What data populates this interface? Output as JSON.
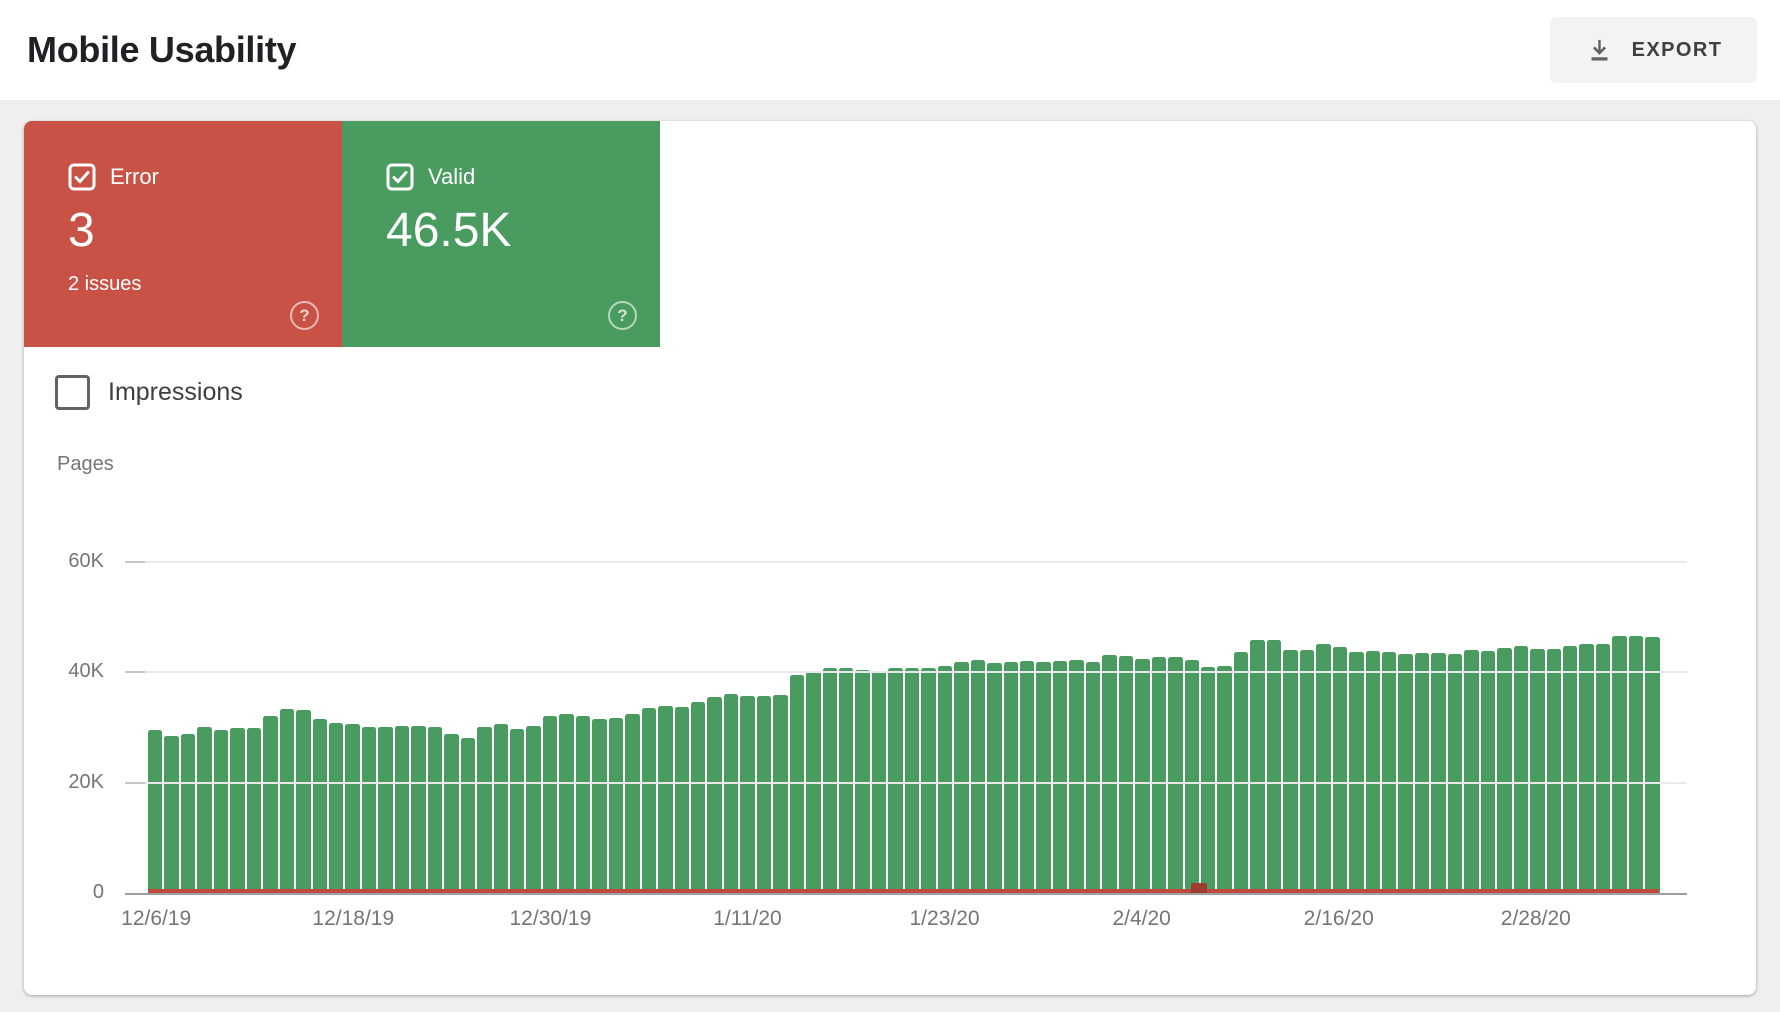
{
  "header": {
    "title": "Mobile Usability",
    "export_label": "EXPORT"
  },
  "icons": {
    "help_glyph": "?"
  },
  "colors": {
    "error_red": "#c75245",
    "valid_green": "#4a9b5f",
    "error_line_red": "#c0493e",
    "error_spike_red": "#a03b31"
  },
  "summary": {
    "error": {
      "label": "Error",
      "value": "3",
      "issues": "2 issues",
      "checked": true
    },
    "valid": {
      "label": "Valid",
      "value": "46.5K",
      "checked": true
    }
  },
  "impressions": {
    "label": "Impressions",
    "checked": false
  },
  "chart_data": {
    "type": "bar",
    "ylabel": "Pages",
    "ylim": [
      0,
      60000
    ],
    "ytick_labels": [
      "60K",
      "40K",
      "20K",
      "0"
    ],
    "grid": true,
    "x_start_date": "12/6/19",
    "x_end_date": "3/6/20",
    "xtick_labels": [
      "12/6/19",
      "12/18/19",
      "12/30/19",
      "1/11/20",
      "1/23/20",
      "2/4/20",
      "2/16/20",
      "2/28/20"
    ],
    "xtick_indices": [
      0,
      12,
      24,
      36,
      48,
      60,
      72,
      84
    ],
    "series": [
      {
        "name": "Valid",
        "values": [
          29500,
          28400,
          28800,
          30100,
          29500,
          29900,
          29900,
          32100,
          33300,
          33200,
          31500,
          30800,
          30600,
          30100,
          30100,
          30200,
          30200,
          30100,
          28800,
          28100,
          30100,
          30600,
          29800,
          30200,
          32100,
          32400,
          32100,
          31600,
          31700,
          32500,
          33600,
          33900,
          33800,
          34600,
          35500,
          36000,
          35800,
          35800,
          35900,
          39500,
          40100,
          40700,
          40700,
          40400,
          40300,
          40700,
          40700,
          40800,
          41100,
          41900,
          42300,
          41700,
          41900,
          42000,
          41900,
          42100,
          42300,
          41800,
          43200,
          43000,
          42500,
          42700,
          42800,
          42300,
          40900,
          41100,
          43700,
          45800,
          45800,
          44000,
          44100,
          45100,
          44600,
          43700,
          43900,
          43600,
          43400,
          43500,
          43500,
          43400,
          44000,
          43900,
          44400,
          44800,
          44300,
          44300,
          44700,
          45200,
          45100,
          46500,
          46500,
          46400
        ]
      },
      {
        "name": "Error",
        "constant_value": 3,
        "spike_index": 63
      }
    ]
  }
}
